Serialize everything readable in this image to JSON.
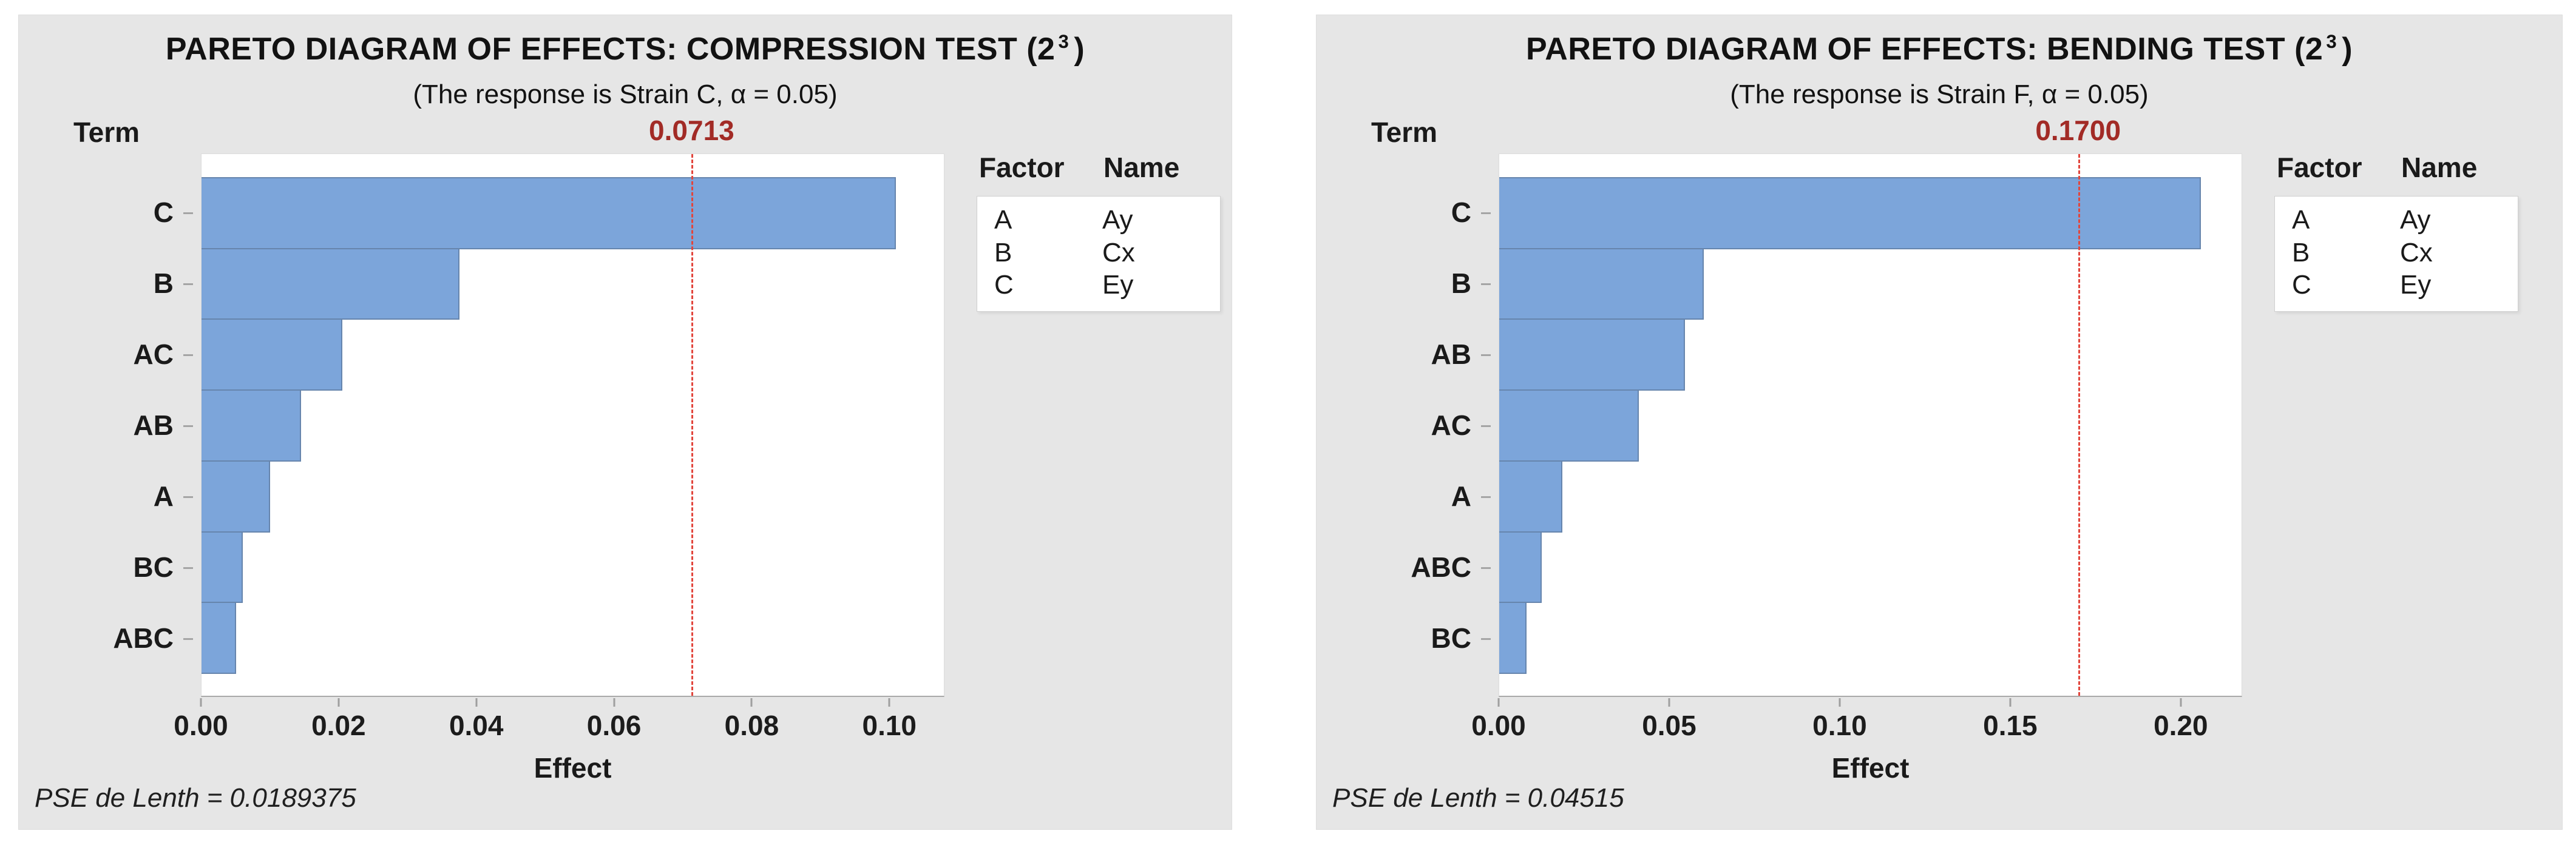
{
  "colors": {
    "panel_background": "#e6e6e6",
    "plot_background": "#ffffff",
    "bar_fill": "#7ca5da",
    "reference_line": "#e2453c",
    "reference_label": "#a22b26",
    "text": "#1a1a1a"
  },
  "chart_data": [
    {
      "type": "bar",
      "orientation": "horizontal",
      "title_prefix": "PARETO DIAGRAM OF EFFECTS: COMPRESSION TEST (2",
      "title_sup": "3",
      "title_suffix": ")",
      "subtitle": "(The response is Strain C, α = 0.05)",
      "ylabel": "Term",
      "xlabel": "Effect",
      "categories": [
        "C",
        "B",
        "AC",
        "AB",
        "A",
        "BC",
        "ABC"
      ],
      "values": [
        0.101,
        0.0375,
        0.0205,
        0.0145,
        0.01,
        0.006,
        0.005
      ],
      "xlim": [
        0,
        0.108
      ],
      "xticks": [
        0.0,
        0.02,
        0.04,
        0.06,
        0.08,
        0.1
      ],
      "xtick_labels": [
        "0.00",
        "0.02",
        "0.04",
        "0.06",
        "0.08",
        "0.10"
      ],
      "grid": false,
      "reference_line": 0.0713,
      "reference_label": "0.0713",
      "footnote": "PSE de Lenth = 0.0189375",
      "legend": {
        "position": "right",
        "headers": [
          "Factor",
          "Name"
        ],
        "rows": [
          [
            "A",
            "Ay"
          ],
          [
            "B",
            "Cx"
          ],
          [
            "C",
            "Ey"
          ]
        ]
      }
    },
    {
      "type": "bar",
      "orientation": "horizontal",
      "title_prefix": "PARETO DIAGRAM OF EFFECTS: BENDING TEST (2",
      "title_sup": "3",
      "title_suffix": ")",
      "subtitle": "(The response is Strain F, α = 0.05)",
      "ylabel": "Term",
      "xlabel": "Effect",
      "categories": [
        "C",
        "B",
        "AB",
        "AC",
        "A",
        "ABC",
        "BC"
      ],
      "values": [
        0.206,
        0.06,
        0.0545,
        0.041,
        0.0185,
        0.0125,
        0.008
      ],
      "xlim": [
        0,
        0.218
      ],
      "xticks": [
        0.0,
        0.05,
        0.1,
        0.15,
        0.2
      ],
      "xtick_labels": [
        "0.00",
        "0.05",
        "0.10",
        "0.15",
        "0.20"
      ],
      "grid": false,
      "reference_line": 0.17,
      "reference_label": "0.1700",
      "footnote": "PSE de Lenth = 0.04515",
      "legend": {
        "position": "right",
        "headers": [
          "Factor",
          "Name"
        ],
        "rows": [
          [
            "A",
            "Ay"
          ],
          [
            "B",
            "Cx"
          ],
          [
            "C",
            "Ey"
          ]
        ]
      }
    }
  ]
}
